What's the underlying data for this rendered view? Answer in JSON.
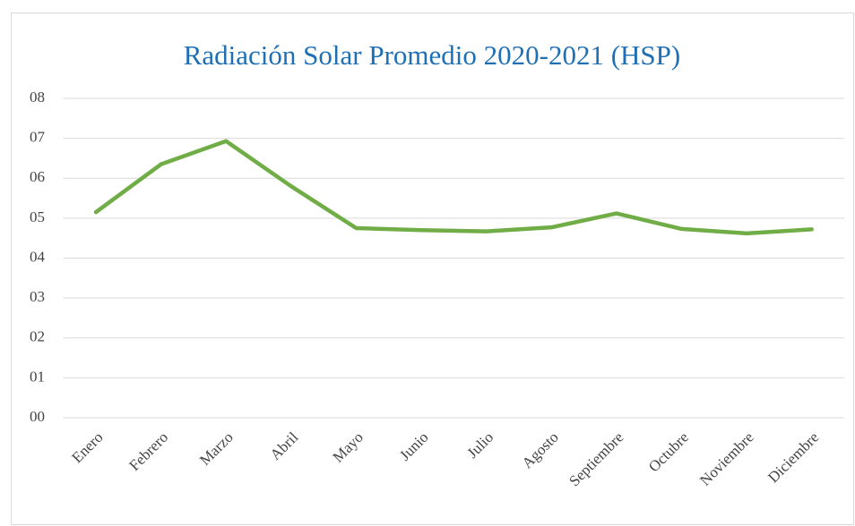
{
  "chart_data": {
    "type": "line",
    "title": "Radiación Solar Promedio 2020-2021 (HSP)",
    "categories": [
      "Enero",
      "Febrero",
      "Marzo",
      "Abril",
      "Mayo",
      "Junio",
      "Julio",
      "Agosto",
      "Septiembre",
      "Octubre",
      "Noviembre",
      "Diciembre"
    ],
    "values": [
      5.15,
      6.35,
      6.93,
      5.8,
      4.75,
      4.7,
      4.67,
      4.77,
      5.12,
      4.73,
      4.62,
      4.72
    ],
    "color": "#70ad47",
    "ylim": [
      0,
      8
    ],
    "yticks": [
      {
        "value": 0,
        "label": "00"
      },
      {
        "value": 1,
        "label": "01"
      },
      {
        "value": 2,
        "label": "02"
      },
      {
        "value": 3,
        "label": "03"
      },
      {
        "value": 4,
        "label": "04"
      },
      {
        "value": 5,
        "label": "05"
      },
      {
        "value": 6,
        "label": "06"
      },
      {
        "value": 7,
        "label": "07"
      },
      {
        "value": 8,
        "label": "08"
      }
    ],
    "grid": true
  }
}
